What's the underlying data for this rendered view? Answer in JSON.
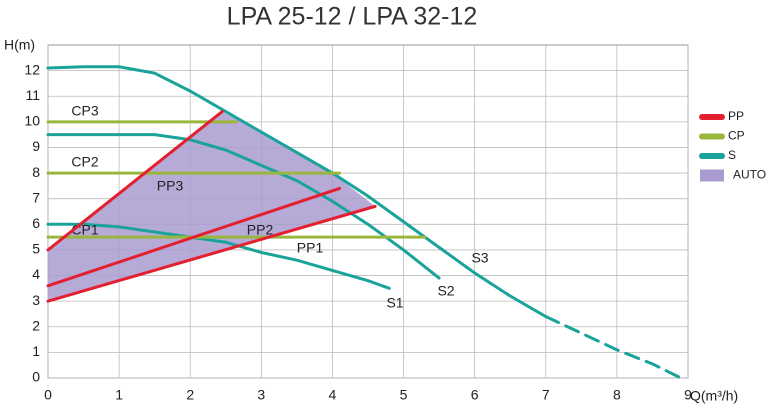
{
  "chart_data": {
    "type": "line",
    "title": "LPA 25-12 / LPA 32-12",
    "x_label": "Q(m³/h)",
    "y_label": "H(m)",
    "xlim": [
      0,
      9
    ],
    "ylim": [
      0,
      13
    ],
    "xticks": [
      0,
      1,
      2,
      3,
      4,
      5,
      6,
      7,
      8,
      9
    ],
    "yticks": [
      0,
      1,
      2,
      3,
      4,
      5,
      6,
      7,
      8,
      9,
      10,
      11,
      12
    ],
    "grid": true,
    "legend": [
      {
        "name": "PP",
        "color": "#e3202f"
      },
      {
        "name": "CP",
        "color": "#9bb63c"
      },
      {
        "name": "S",
        "color": "#1aa39b"
      },
      {
        "name": "AUTO",
        "color": "#a99bd0"
      }
    ],
    "series": [
      {
        "color": "#a99bd0",
        "fill": true,
        "x": [
          0,
          0,
          2.45,
          3,
          3.5,
          4,
          4.6,
          0
        ],
        "values": [
          3,
          5,
          10.4,
          9.6,
          8.8,
          8.0,
          6.7,
          3
        ]
      },
      {
        "name": "S1",
        "color": "#1aa39b",
        "x": [
          0,
          0.5,
          1,
          1.5,
          2,
          2.5,
          3,
          3.5,
          4,
          4.5,
          4.8
        ],
        "values": [
          6,
          6,
          5.9,
          5.7,
          5.5,
          5.3,
          4.9,
          4.6,
          4.2,
          3.8,
          3.5
        ]
      },
      {
        "name": "S2",
        "color": "#1aa39b",
        "x": [
          0,
          1,
          1.5,
          2,
          2.5,
          3,
          3.5,
          4,
          4.5,
          5,
          5.5
        ],
        "values": [
          9.5,
          9.5,
          9.5,
          9.3,
          8.9,
          8.3,
          7.7,
          6.9,
          6.0,
          5.0,
          3.9
        ]
      },
      {
        "name": "S3",
        "color": "#1aa39b",
        "x": [
          0,
          0.5,
          1,
          1.5,
          2,
          2.5,
          3,
          3.5,
          4,
          4.5,
          5,
          5.5,
          6,
          6.5,
          7
        ],
        "values": [
          12.1,
          12.15,
          12.15,
          11.9,
          11.2,
          10.4,
          9.6,
          8.8,
          8.0,
          7.1,
          6.1,
          5.1,
          4.1,
          3.2,
          2.4
        ]
      },
      {
        "color": "#1aa39b",
        "dashed": true,
        "x": [
          7,
          7.5,
          8,
          8.5,
          8.9
        ],
        "values": [
          2.4,
          1.75,
          1.1,
          0.55,
          0
        ]
      },
      {
        "name": "CP1",
        "color": "#9bb63c",
        "x": [
          0,
          5.3
        ],
        "values": [
          5.5,
          5.5
        ]
      },
      {
        "name": "CP2",
        "color": "#9bb63c",
        "x": [
          0,
          4.1
        ],
        "values": [
          8,
          8
        ]
      },
      {
        "name": "CP3",
        "color": "#9bb63c",
        "x": [
          0,
          2.65
        ],
        "values": [
          10,
          10
        ]
      },
      {
        "name": "PP1",
        "color": "#e3202f",
        "x": [
          0,
          4.6
        ],
        "values": [
          3,
          6.7
        ]
      },
      {
        "name": "PP2",
        "color": "#e3202f",
        "x": [
          0,
          4.1
        ],
        "values": [
          3.6,
          7.4
        ]
      },
      {
        "name": "PP3",
        "color": "#e3202f",
        "x": [
          0,
          2.45
        ],
        "values": [
          5,
          10.4
        ]
      }
    ]
  }
}
